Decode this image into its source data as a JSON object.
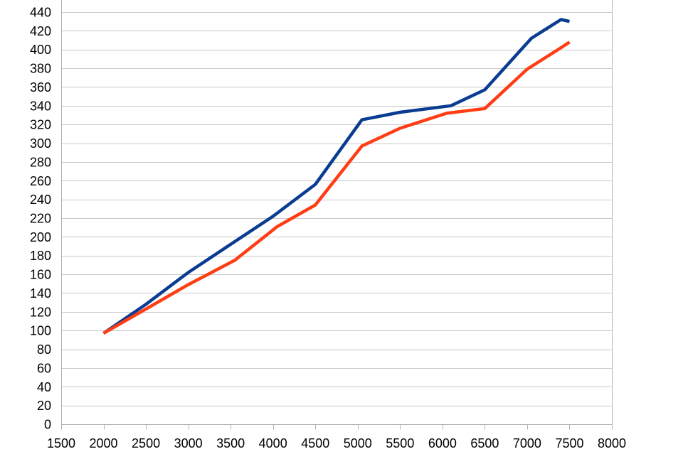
{
  "chart_data": {
    "type": "line",
    "title": "",
    "xlabel": "",
    "ylabel": "",
    "xlim": [
      1500,
      8000
    ],
    "ylim": [
      0,
      440
    ],
    "x_ticks": [
      1500,
      2000,
      2500,
      3000,
      3500,
      4000,
      4500,
      5000,
      5500,
      6000,
      6500,
      7000,
      7500,
      8000
    ],
    "y_ticks": [
      0,
      20,
      40,
      60,
      80,
      100,
      120,
      140,
      160,
      180,
      200,
      220,
      240,
      260,
      280,
      300,
      320,
      340,
      360,
      380,
      400,
      420,
      440
    ],
    "grid": "horizontal",
    "legend": "none",
    "series": [
      {
        "color": "#0a3d91",
        "points": [
          [
            2000,
            97
          ],
          [
            2500,
            128
          ],
          [
            3000,
            162
          ],
          [
            3500,
            192
          ],
          [
            4000,
            222
          ],
          [
            4500,
            256
          ],
          [
            5050,
            325
          ],
          [
            5500,
            333
          ],
          [
            6100,
            340
          ],
          [
            6500,
            357
          ],
          [
            7050,
            412
          ],
          [
            7400,
            432
          ],
          [
            7500,
            430
          ]
        ]
      },
      {
        "color": "#ff3d14",
        "points": [
          [
            2000,
            97
          ],
          [
            2500,
            123
          ],
          [
            3000,
            149
          ],
          [
            3550,
            175
          ],
          [
            4050,
            211
          ],
          [
            4500,
            234
          ],
          [
            5050,
            297
          ],
          [
            5500,
            316
          ],
          [
            6050,
            332
          ],
          [
            6500,
            337
          ],
          [
            7000,
            379
          ],
          [
            7400,
            402
          ],
          [
            7500,
            408
          ]
        ]
      }
    ]
  }
}
